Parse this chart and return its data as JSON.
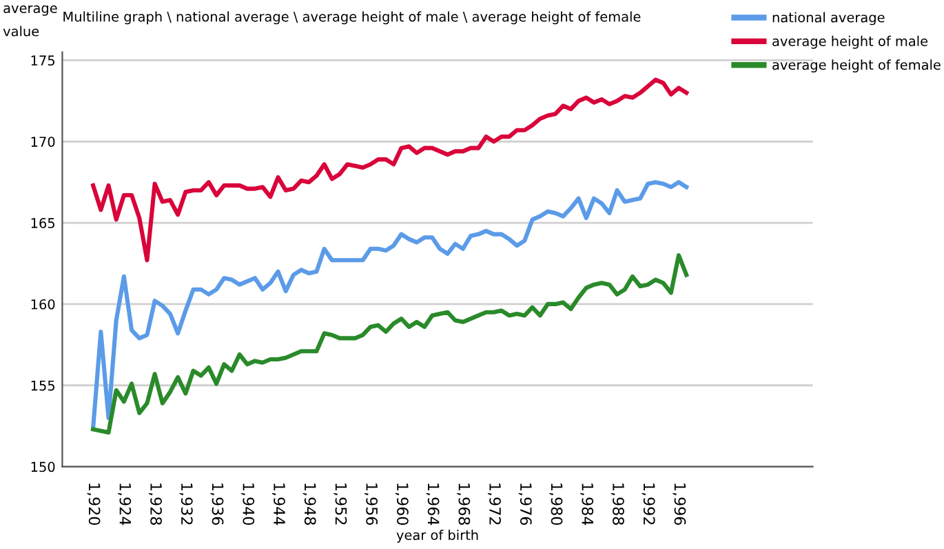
{
  "chart_data": {
    "type": "line",
    "title": "Multiline graph \\ national average \\ average height of male \\ average height of female",
    "xlabel": "year of birth",
    "ylabel": "average\nvalue",
    "x": [
      1920,
      1921,
      1922,
      1923,
      1924,
      1925,
      1926,
      1927,
      1928,
      1929,
      1930,
      1931,
      1932,
      1933,
      1934,
      1935,
      1936,
      1937,
      1938,
      1939,
      1940,
      1941,
      1942,
      1943,
      1944,
      1945,
      1946,
      1947,
      1948,
      1949,
      1950,
      1951,
      1952,
      1953,
      1954,
      1955,
      1956,
      1957,
      1958,
      1959,
      1960,
      1961,
      1962,
      1963,
      1964,
      1965,
      1966,
      1967,
      1968,
      1969,
      1970,
      1971,
      1972,
      1973,
      1974,
      1975,
      1976,
      1977,
      1978,
      1979,
      1980,
      1981,
      1982,
      1983,
      1984,
      1985,
      1986,
      1987,
      1988,
      1989,
      1990,
      1991,
      1992,
      1993,
      1994,
      1995,
      1996,
      1997
    ],
    "series": [
      {
        "name": "national average",
        "color": "#5b9be8",
        "values": [
          152.4,
          158.3,
          153.0,
          159.0,
          161.7,
          158.4,
          157.9,
          158.1,
          160.2,
          159.9,
          159.4,
          158.2,
          159.6,
          160.9,
          160.9,
          160.6,
          160.9,
          161.6,
          161.5,
          161.2,
          161.4,
          161.6,
          160.9,
          161.3,
          162.0,
          160.8,
          161.8,
          162.1,
          161.9,
          162.0,
          163.4,
          162.7,
          162.7,
          162.7,
          162.7,
          162.7,
          163.4,
          163.4,
          163.3,
          163.6,
          164.3,
          164.0,
          163.8,
          164.1,
          164.1,
          163.4,
          163.1,
          163.7,
          163.4,
          164.2,
          164.3,
          164.5,
          164.3,
          164.3,
          164.0,
          163.6,
          163.9,
          165.2,
          165.4,
          165.7,
          165.6,
          165.4,
          165.9,
          166.5,
          165.3,
          166.5,
          166.2,
          165.6,
          167.0,
          166.3,
          166.4,
          166.5,
          167.4,
          167.5,
          167.4,
          167.2,
          167.5,
          167.2
        ]
      },
      {
        "name": "average height of male",
        "color": "#d9043a",
        "values": [
          167.3,
          165.8,
          167.3,
          165.2,
          166.7,
          166.7,
          165.3,
          162.7,
          167.4,
          166.3,
          166.4,
          165.5,
          166.9,
          167.0,
          167.0,
          167.5,
          166.7,
          167.3,
          167.3,
          167.3,
          167.1,
          167.1,
          167.2,
          166.6,
          167.8,
          167.0,
          167.1,
          167.6,
          167.5,
          167.9,
          168.6,
          167.7,
          168.0,
          168.6,
          168.5,
          168.4,
          168.6,
          168.9,
          168.9,
          168.6,
          169.6,
          169.7,
          169.3,
          169.6,
          169.6,
          169.4,
          169.2,
          169.4,
          169.4,
          169.6,
          169.6,
          170.3,
          170.0,
          170.3,
          170.3,
          170.7,
          170.7,
          171.0,
          171.4,
          171.6,
          171.7,
          172.2,
          172.0,
          172.5,
          172.7,
          172.4,
          172.6,
          172.3,
          172.5,
          172.8,
          172.7,
          173.0,
          173.4,
          173.8,
          173.6,
          172.9,
          173.3,
          173.0
        ]
      },
      {
        "name": "average height of female",
        "color": "#2a8a2a",
        "values": [
          152.3,
          152.2,
          152.1,
          154.7,
          154.0,
          155.1,
          153.3,
          153.9,
          155.7,
          153.9,
          154.6,
          155.5,
          154.5,
          155.9,
          155.6,
          156.1,
          155.1,
          156.3,
          155.9,
          156.9,
          156.3,
          156.5,
          156.4,
          156.6,
          156.6,
          156.7,
          156.9,
          157.1,
          157.1,
          157.1,
          158.2,
          158.1,
          157.9,
          157.9,
          157.9,
          158.1,
          158.6,
          158.7,
          158.3,
          158.8,
          159.1,
          158.6,
          158.9,
          158.6,
          159.3,
          159.4,
          159.5,
          159.0,
          158.9,
          159.1,
          159.3,
          159.5,
          159.5,
          159.6,
          159.3,
          159.4,
          159.3,
          159.8,
          159.3,
          160.0,
          160.0,
          160.1,
          159.7,
          160.4,
          161.0,
          161.2,
          161.3,
          161.2,
          160.6,
          160.9,
          161.7,
          161.1,
          161.2,
          161.5,
          161.3,
          160.7,
          163.0,
          161.8
        ]
      }
    ],
    "xlim": [
      1916,
      2013.4
    ],
    "xticks": [
      {
        "value": 1920,
        "label": "1,920"
      },
      {
        "value": 1924,
        "label": "1,924"
      },
      {
        "value": 1928,
        "label": "1,928"
      },
      {
        "value": 1932,
        "label": "1,932"
      },
      {
        "value": 1936,
        "label": "1,936"
      },
      {
        "value": 1940,
        "label": "1,940"
      },
      {
        "value": 1944,
        "label": "1,944"
      },
      {
        "value": 1948,
        "label": "1,948"
      },
      {
        "value": 1952,
        "label": "1,952"
      },
      {
        "value": 1956,
        "label": "1,956"
      },
      {
        "value": 1960,
        "label": "1,960"
      },
      {
        "value": 1964,
        "label": "1,964"
      },
      {
        "value": 1968,
        "label": "1,968"
      },
      {
        "value": 1972,
        "label": "1,972"
      },
      {
        "value": 1976,
        "label": "1,976"
      },
      {
        "value": 1980,
        "label": "1,980"
      },
      {
        "value": 1984,
        "label": "1,984"
      },
      {
        "value": 1988,
        "label": "1,988"
      },
      {
        "value": 1992,
        "label": "1,992"
      },
      {
        "value": 1996,
        "label": "1,996"
      }
    ],
    "ylim": [
      150,
      175.5
    ],
    "yticks": [
      150,
      155,
      160,
      165,
      170,
      175
    ],
    "grid": "y",
    "legend": "top right",
    "marker": "none",
    "line_style": "solid"
  }
}
